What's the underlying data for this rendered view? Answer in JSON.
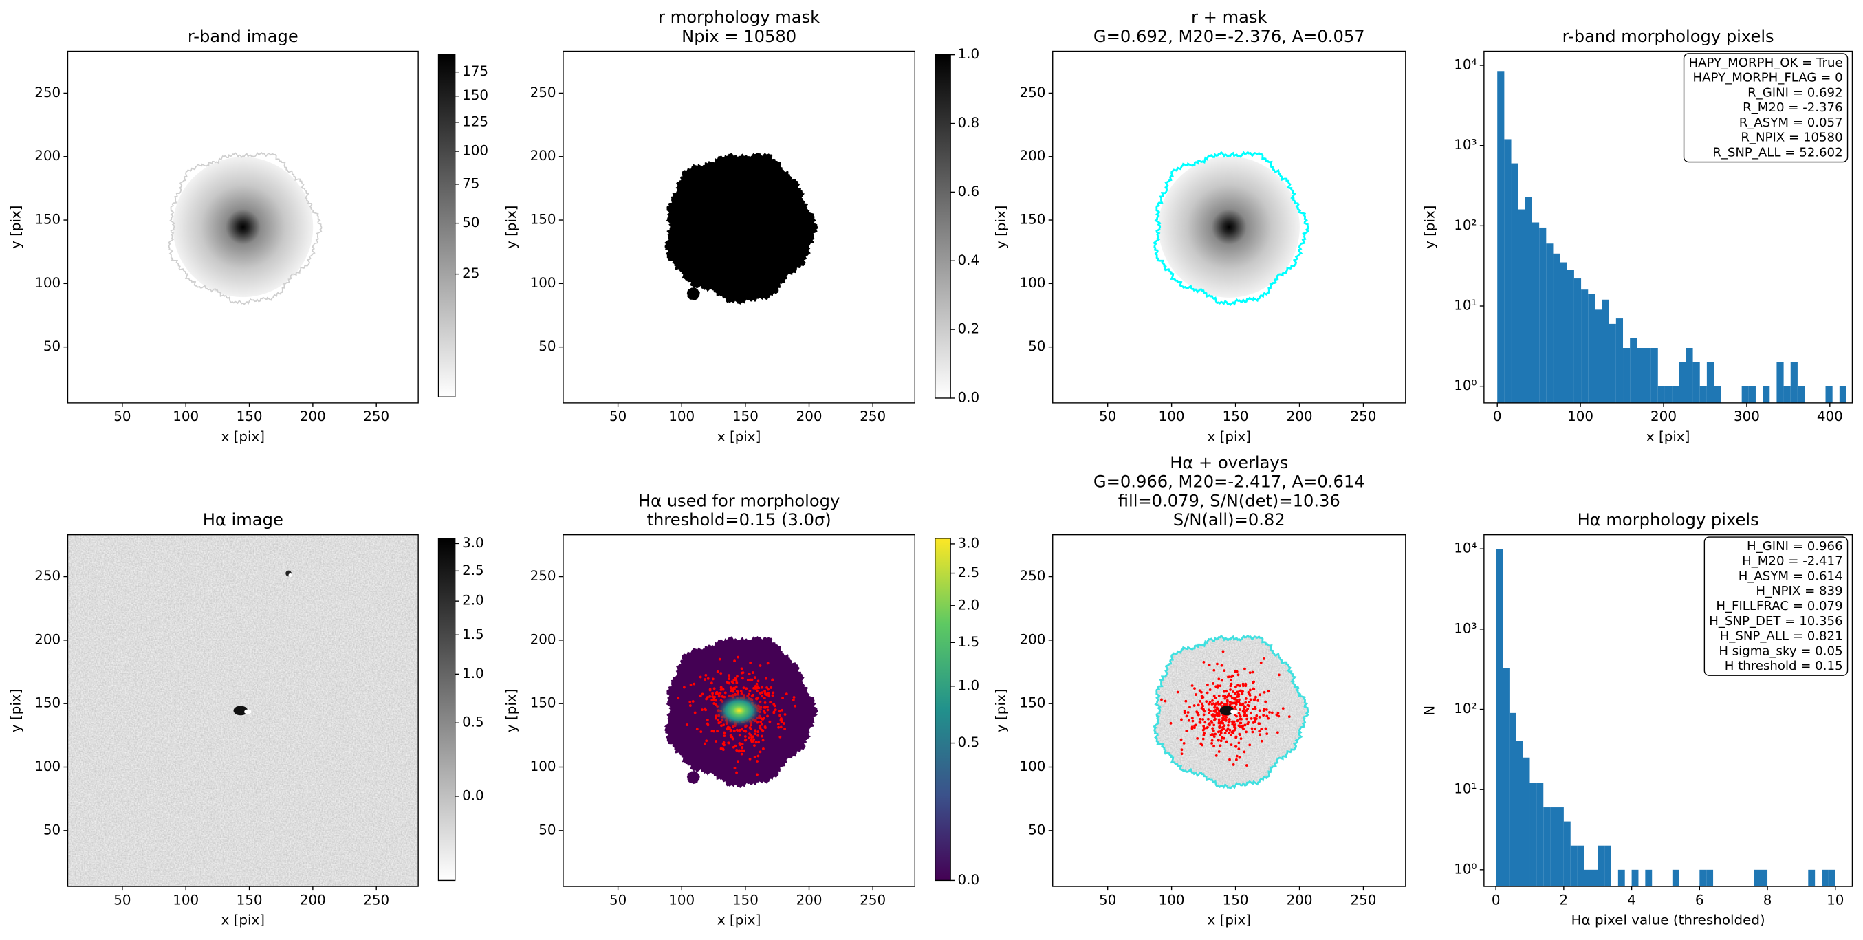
{
  "chart_data": [
    {
      "type": "image",
      "title": [
        "r-band image"
      ],
      "xlabel": "x [pix]",
      "ylabel": "y [pix]",
      "xlim": [
        7,
        283
      ],
      "ylim": [
        6,
        283
      ],
      "xticks": [
        50,
        100,
        150,
        200,
        250
      ],
      "yticks": [
        50,
        100,
        150,
        200,
        250
      ],
      "colorbar": {
        "colormap": "gray_r",
        "norm": "sqrt",
        "clim": [
          0,
          194
        ],
        "ticks": [
          25,
          50,
          75,
          100,
          125,
          150,
          175
        ]
      }
    },
    {
      "type": "image",
      "title": [
        "r morphology mask",
        "Npix = 10580"
      ],
      "xlabel": "x [pix]",
      "ylabel": "y [pix]",
      "xlim": [
        7,
        283
      ],
      "ylim": [
        6,
        283
      ],
      "xticks": [
        50,
        100,
        150,
        200,
        250
      ],
      "yticks": [
        50,
        100,
        150,
        200,
        250
      ],
      "colorbar": {
        "colormap": "gray_r",
        "norm": "linear",
        "clim": [
          0,
          1
        ],
        "ticks": [
          {
            "value": 0,
            "label": "0.0"
          },
          {
            "value": 0.2,
            "label": "0.2"
          },
          {
            "value": 0.4,
            "label": "0.4"
          },
          {
            "value": 0.6,
            "label": "0.6"
          },
          {
            "value": 0.8,
            "label": "0.8"
          },
          {
            "value": 1,
            "label": "1.0"
          }
        ]
      }
    },
    {
      "type": "image",
      "title": [
        "r + mask",
        "G=0.692, M20=-2.376, A=0.057"
      ],
      "xlabel": "x [pix]",
      "ylabel": "y [pix]",
      "xlim": [
        7,
        283
      ],
      "ylim": [
        6,
        283
      ],
      "xticks": [
        50,
        100,
        150,
        200,
        250
      ],
      "yticks": [
        50,
        100,
        150,
        200,
        250
      ]
    },
    {
      "type": "histogram",
      "title": [
        "r-band morphology pixels"
      ],
      "xlabel": "x [pix]",
      "ylabel": "y [pix]",
      "xlim": [
        -16,
        427
      ],
      "ylim": [
        0.62,
        15000
      ],
      "log_y": true,
      "color": "#1f77b4",
      "xticks": [
        0,
        100,
        200,
        300,
        400
      ],
      "yticks": [
        {
          "value": 1,
          "label": "10⁰"
        },
        {
          "value": 10,
          "label": "10¹"
        },
        {
          "value": 100,
          "label": "10²"
        },
        {
          "value": 1000,
          "label": "10³"
        },
        {
          "value": 10000,
          "label": "10⁴"
        }
      ],
      "bins": [
        0,
        8.4,
        16.8,
        25.2,
        33.6,
        42,
        50.4,
        58.8,
        67.2,
        75.6,
        84,
        92.4,
        100.8,
        109.2,
        117.6,
        126,
        134.4,
        142.8,
        151.2,
        159.6,
        168,
        176.4,
        184.8,
        193.2,
        201.6,
        210,
        218.4,
        226.8,
        235.2,
        243.6,
        252,
        260.4,
        268.8,
        277.2,
        285.6,
        294,
        302.4,
        310.8,
        319.2,
        327.6,
        336,
        344.4,
        352.8,
        361.2,
        369.6,
        378,
        386.4,
        394.8,
        403.2,
        411.6,
        420
      ],
      "counts": [
        8500,
        1200,
        600,
        160,
        230,
        110,
        95,
        60,
        45,
        35,
        28,
        22,
        16,
        14,
        9,
        12,
        6,
        7,
        3,
        4,
        3,
        3,
        3,
        1,
        1,
        1,
        2,
        3,
        2,
        1,
        2,
        1,
        0,
        0,
        0,
        1,
        1,
        0,
        1,
        0,
        2,
        1,
        2,
        1,
        0,
        0,
        0,
        1,
        0,
        1
      ],
      "annotation": [
        "HAPY_MORPH_OK = True",
        "HAPY_MORPH_FLAG = 0",
        "R_GINI = 0.692",
        "R_M20 = -2.376",
        "R_ASYM = 0.057",
        "R_NPIX = 10580",
        "R_SNP_ALL = 52.602"
      ]
    },
    {
      "type": "image",
      "title": [
        "Hα image"
      ],
      "xlabel": "x [pix]",
      "ylabel": "y [pix]",
      "xlim": [
        7,
        283
      ],
      "ylim": [
        6,
        283
      ],
      "xticks": [
        50,
        100,
        150,
        200,
        250
      ],
      "yticks": [
        50,
        100,
        150,
        200,
        250
      ],
      "colorbar": {
        "colormap": "gray_r",
        "norm": "sqrt",
        "clim": [
          -0.2,
          3.1
        ],
        "ticks": [
          {
            "value": 0,
            "label": "0.0"
          },
          {
            "value": 0.5,
            "label": "0.5"
          },
          {
            "value": 1,
            "label": "1.0"
          },
          {
            "value": 1.5,
            "label": "1.5"
          },
          {
            "value": 2,
            "label": "2.0"
          },
          {
            "value": 2.5,
            "label": "2.5"
          },
          {
            "value": 3,
            "label": "3.0"
          }
        ]
      }
    },
    {
      "type": "image",
      "title": [
        "Hα used for morphology",
        "threshold=0.15 (3.0σ)"
      ],
      "xlabel": "x [pix]",
      "ylabel": "y [pix]",
      "xlim": [
        7,
        283
      ],
      "ylim": [
        6,
        283
      ],
      "xticks": [
        50,
        100,
        150,
        200,
        250
      ],
      "yticks": [
        50,
        100,
        150,
        200,
        250
      ],
      "colorbar": {
        "colormap": "viridis",
        "norm": "sqrt",
        "clim": [
          0,
          3.1
        ],
        "ticks": [
          {
            "value": 0,
            "label": "0.0"
          },
          {
            "value": 0.5,
            "label": "0.5"
          },
          {
            "value": 1,
            "label": "1.0"
          },
          {
            "value": 1.5,
            "label": "1.5"
          },
          {
            "value": 2,
            "label": "2.0"
          },
          {
            "value": 2.5,
            "label": "2.5"
          },
          {
            "value": 3,
            "label": "3.0"
          }
        ]
      }
    },
    {
      "type": "image",
      "title": [
        "Hα + overlays",
        "G=0.966, M20=-2.417, A=0.614",
        "fill=0.079, S/N(det)=10.36",
        "S/N(all)=0.82"
      ],
      "xlabel": "x [pix]",
      "ylabel": "y [pix]",
      "xlim": [
        7,
        283
      ],
      "ylim": [
        6,
        283
      ],
      "xticks": [
        50,
        100,
        150,
        200,
        250
      ],
      "yticks": [
        50,
        100,
        150,
        200,
        250
      ]
    },
    {
      "type": "histogram",
      "title": [
        "Hα morphology pixels"
      ],
      "xlabel": "Hα pixel value (thresholded)",
      "ylabel": "N",
      "xlim": [
        -0.35,
        10.5
      ],
      "ylim": [
        0.62,
        15000
      ],
      "log_y": true,
      "color": "#1f77b4",
      "xticks": [
        0,
        2,
        4,
        6,
        8,
        10
      ],
      "yticks": [
        {
          "value": 1,
          "label": "10⁰"
        },
        {
          "value": 10,
          "label": "10¹"
        },
        {
          "value": 100,
          "label": "10²"
        },
        {
          "value": 1000,
          "label": "10³"
        },
        {
          "value": 10000,
          "label": "10⁴"
        }
      ],
      "bins": [
        0,
        0.2,
        0.4,
        0.6,
        0.8,
        1,
        1.2,
        1.4,
        1.6,
        1.8,
        2,
        2.2,
        2.4,
        2.6,
        2.8,
        3,
        3.2,
        3.4,
        3.6,
        3.8,
        4,
        4.2,
        4.4,
        4.6,
        4.8,
        5,
        5.2,
        5.4,
        5.6,
        5.8,
        6,
        6.2,
        6.4,
        6.6,
        6.8,
        7,
        7.2,
        7.4,
        7.6,
        7.8,
        8,
        8.2,
        8.4,
        8.6,
        8.8,
        9,
        9.2,
        9.4,
        9.6,
        9.8,
        10
      ],
      "counts": [
        10000,
        330,
        90,
        40,
        25,
        12,
        12,
        6,
        6,
        6,
        4,
        2,
        2,
        1,
        1,
        2,
        2,
        0,
        1,
        0,
        1,
        0,
        1,
        0,
        0,
        0,
        1,
        0,
        0,
        0,
        1,
        1,
        0,
        0,
        0,
        0,
        0,
        0,
        1,
        1,
        0,
        0,
        0,
        0,
        0,
        0,
        1,
        0,
        1,
        1
      ],
      "annotation": [
        "H_GINI = 0.966",
        "H_M20 = -2.417",
        "H_ASYM = 0.614",
        "H_NPIX = 839",
        "H_FILLFRAC = 0.079",
        "H_SNP_DET = 10.356",
        "H_SNP_ALL = 0.821",
        "H sigma_sky = 0.05",
        "H threshold = 0.15"
      ]
    }
  ]
}
